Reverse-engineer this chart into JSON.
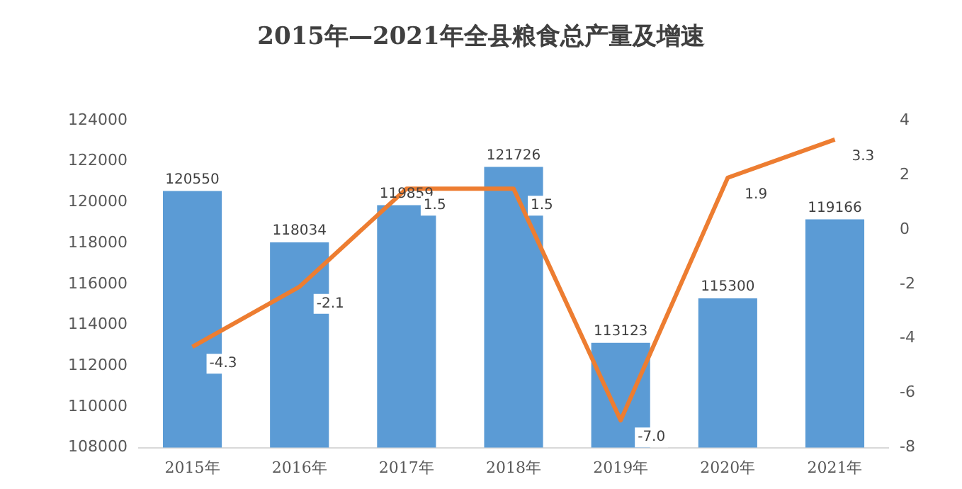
{
  "chart_data": {
    "type": "bar",
    "title": "2015年—2021年全县粮食总产量及增速",
    "categories": [
      "2015年",
      "2016年",
      "2017年",
      "2018年",
      "2019年",
      "2020年",
      "2021年"
    ],
    "series": [
      {
        "color": "#5b9bd5",
        "values": [
          120550,
          118034,
          119859,
          121726,
          113123,
          115300,
          119166
        ],
        "value_labels": [
          "120550",
          "118034",
          "119859",
          "121726",
          "113123",
          "115300",
          "119166"
        ]
      },
      {
        "type": "line",
        "axis": "y2",
        "color": "#ed7d31",
        "values": [
          -4.3,
          -2.1,
          1.5,
          1.5,
          -7.0,
          1.9,
          3.3
        ],
        "value_labels": [
          "-4.3",
          "-2.1",
          "1.5",
          "1.5",
          "-7.0",
          "1.9",
          "3.3"
        ]
      }
    ],
    "ylim": [
      108000,
      124000
    ],
    "yticks": [
      108000,
      110000,
      112000,
      114000,
      116000,
      118000,
      120000,
      122000,
      124000
    ],
    "y2lim": [
      -8,
      4
    ],
    "y2ticks": [
      -8,
      -6,
      -4,
      -2,
      0,
      2,
      4
    ],
    "grid": false,
    "legend": false,
    "marker": "none"
  }
}
